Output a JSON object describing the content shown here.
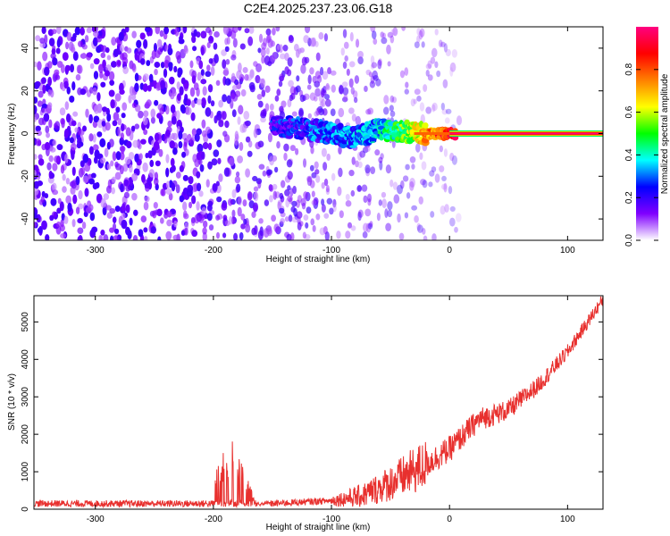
{
  "title": "C2E4.2025.237.23.06.G18",
  "chart_data": [
    {
      "type": "heatmap",
      "xlabel": "Height of straight line (km)",
      "ylabel": "Frequency (Hz)",
      "xlim": [
        -352,
        130
      ],
      "ylim": [
        -50,
        50
      ],
      "xticks": [
        -300,
        -200,
        -100,
        0,
        100
      ],
      "yticks": [
        -40,
        -20,
        0,
        20,
        40
      ],
      "colorbar": {
        "label": "Normalized spectral amplitude",
        "range": [
          0,
          1
        ],
        "ticks": [
          0.0,
          0.2,
          0.4,
          0.6,
          0.8
        ],
        "colormap": [
          "#ffffff",
          "#8000ff",
          "#0000ff",
          "#00ffff",
          "#00ff00",
          "#ffff00",
          "#ff8000",
          "#ff0000",
          "#ff0080"
        ]
      },
      "ridge": [
        {
          "x": -150,
          "y": 4,
          "amplitude": 0.3
        },
        {
          "x": -120,
          "y": 2,
          "amplitude": 0.35
        },
        {
          "x": -100,
          "y": 0,
          "amplitude": 0.38
        },
        {
          "x": -80,
          "y": -2,
          "amplitude": 0.4
        },
        {
          "x": -60,
          "y": 2,
          "amplitude": 0.45
        },
        {
          "x": -40,
          "y": 1,
          "amplitude": 0.6
        },
        {
          "x": -20,
          "y": 0,
          "amplitude": 0.8
        },
        {
          "x": 0,
          "y": 0,
          "amplitude": 1.0
        },
        {
          "x": 130,
          "y": 0,
          "amplitude": 1.0
        }
      ]
    },
    {
      "type": "line",
      "xlabel": "Height of straight line (km)",
      "ylabel": "SNR (10 * v/v)",
      "xlim": [
        -352,
        130
      ],
      "ylim": [
        0,
        5700
      ],
      "xticks": [
        -300,
        -200,
        -100,
        0,
        100
      ],
      "yticks": [
        0,
        1000,
        2000,
        3000,
        4000,
        5000
      ],
      "series": [
        {
          "name": "SNR",
          "color": "#e8302e",
          "x": [
            -352,
            -300,
            -250,
            -200,
            -150,
            -100,
            -75,
            -50,
            -25,
            0,
            25,
            50,
            75,
            100,
            130
          ],
          "y": [
            150,
            150,
            150,
            150,
            150,
            230,
            350,
            700,
            1100,
            1600,
            2400,
            2650,
            3300,
            4200,
            5600
          ]
        }
      ],
      "burst": {
        "x_range": [
          -200,
          -155
        ],
        "peak": 2050
      }
    }
  ]
}
